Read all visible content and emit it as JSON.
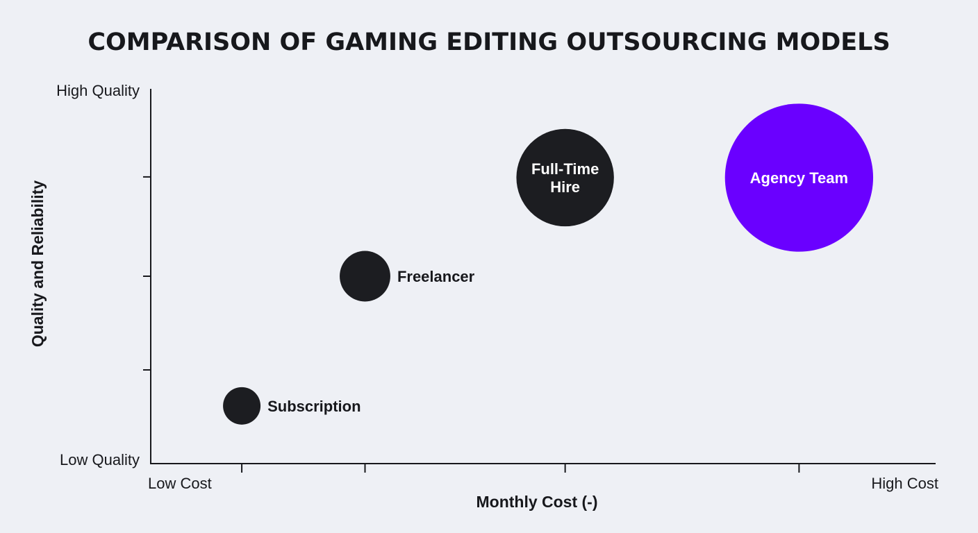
{
  "chart_data": {
    "type": "scatter",
    "subtype": "bubble",
    "title": "COMPARISON OF GAMING EDITING OUTSOURCING MODELS",
    "xlabel": "Monthly Cost (-)",
    "ylabel": "Quality and Reliability",
    "x_tick_labels": {
      "low": "Low Cost",
      "high": "High Cost"
    },
    "y_tick_labels": {
      "low": "Low Quality",
      "high": "High Quality"
    },
    "xlim": [
      0,
      10
    ],
    "ylim": [
      0,
      10
    ],
    "x_ticks": [
      1.16,
      2.73,
      5.28,
      8.26
    ],
    "y_ticks": [
      2.5,
      5.0,
      7.65
    ],
    "grid": false,
    "legend": "none",
    "points": [
      {
        "name": "Subscription",
        "x": 1.16,
        "y": 1.54,
        "size": 1.0,
        "color": "#1c1d21",
        "label_position": "right",
        "label_color": "#17181c"
      },
      {
        "name": "Freelancer",
        "x": 2.73,
        "y": 5.0,
        "size": 1.35,
        "color": "#1c1d21",
        "label_position": "right",
        "label_color": "#17181c"
      },
      {
        "name": "Full-Time Hire",
        "x": 5.28,
        "y": 7.63,
        "size": 2.6,
        "color": "#1c1d21",
        "label_position": "center",
        "label_color": "#ffffff"
      },
      {
        "name": "Agency Team",
        "x": 8.26,
        "y": 7.63,
        "size": 3.95,
        "color": "#6a00ff",
        "label_position": "center",
        "label_color": "#ffffff"
      }
    ]
  }
}
